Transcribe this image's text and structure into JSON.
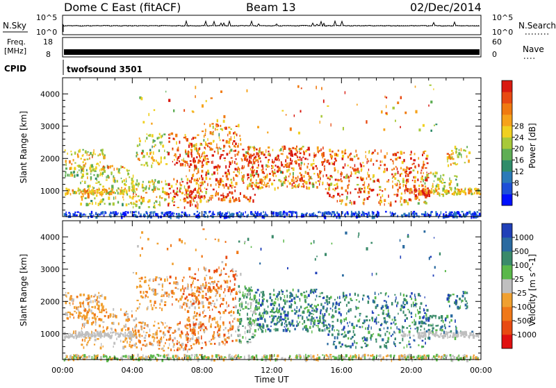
{
  "header": {
    "radar": "Dome C East (fitACF)",
    "beam": "Beam 13",
    "date": "02/Dec/2014"
  },
  "noise_panel": {
    "left_label": "N.Sky",
    "right_label": "N.Search",
    "left_ticks": [
      "10^5",
      "10^0"
    ],
    "right_ticks": [
      "10^5",
      "10^0"
    ]
  },
  "freq_panel": {
    "left_label_1": "Freq.",
    "left_label_2": "[MHz]",
    "right_label": "Nave",
    "left_ticks": [
      "18",
      "8"
    ],
    "right_ticks": [
      "60",
      "0"
    ],
    "freq_value_mhz": 10.5
  },
  "cpid": {
    "label": "CPID",
    "value": "twofsound 3501"
  },
  "chart_data": [
    {
      "type": "heatmap",
      "name": "power",
      "xlabel": "",
      "ylabel": "Slant Range [km]",
      "x_ticks": [
        "00:00",
        "04:00",
        "08:00",
        "12:00",
        "16:00",
        "20:00",
        "00:00"
      ],
      "y_ticks": [
        1000,
        2000,
        3000,
        4000
      ],
      "ylim": [
        200,
        4500
      ],
      "xlim_hours": [
        0,
        24
      ],
      "colorbar": {
        "label": "Power [dB]",
        "ticks": [
          "4",
          "8",
          "12",
          "16",
          "20",
          "24",
          "28"
        ],
        "colors": [
          "#0010ff",
          "#1c4fd8",
          "#2a7ab8",
          "#2f8c6a",
          "#5fae55",
          "#a8c93a",
          "#f0d020",
          "#f6a21a",
          "#f07a10",
          "#e84a12",
          "#d91a10"
        ]
      }
    },
    {
      "type": "heatmap",
      "name": "velocity",
      "xlabel": "Time UT",
      "ylabel": "Slant Range [km]",
      "x_ticks": [
        "00:00",
        "04:00",
        "08:00",
        "12:00",
        "16:00",
        "20:00",
        "00:00"
      ],
      "y_ticks": [
        1000,
        2000,
        3000,
        4000
      ],
      "ylim": [
        200,
        4500
      ],
      "xlim_hours": [
        0,
        24
      ],
      "colorbar": {
        "label": "Velocity [m s^-1]",
        "ticks": [
          "1000",
          "500",
          "100",
          "25",
          "-25",
          "-100",
          "-500",
          "-1000"
        ],
        "colors": [
          "#2040b8",
          "#2a6aa0",
          "#3a8a6a",
          "#5ab84a",
          "#bfbfbf",
          "#f0a030",
          "#f07818",
          "#e84a12",
          "#e01010"
        ]
      }
    }
  ]
}
